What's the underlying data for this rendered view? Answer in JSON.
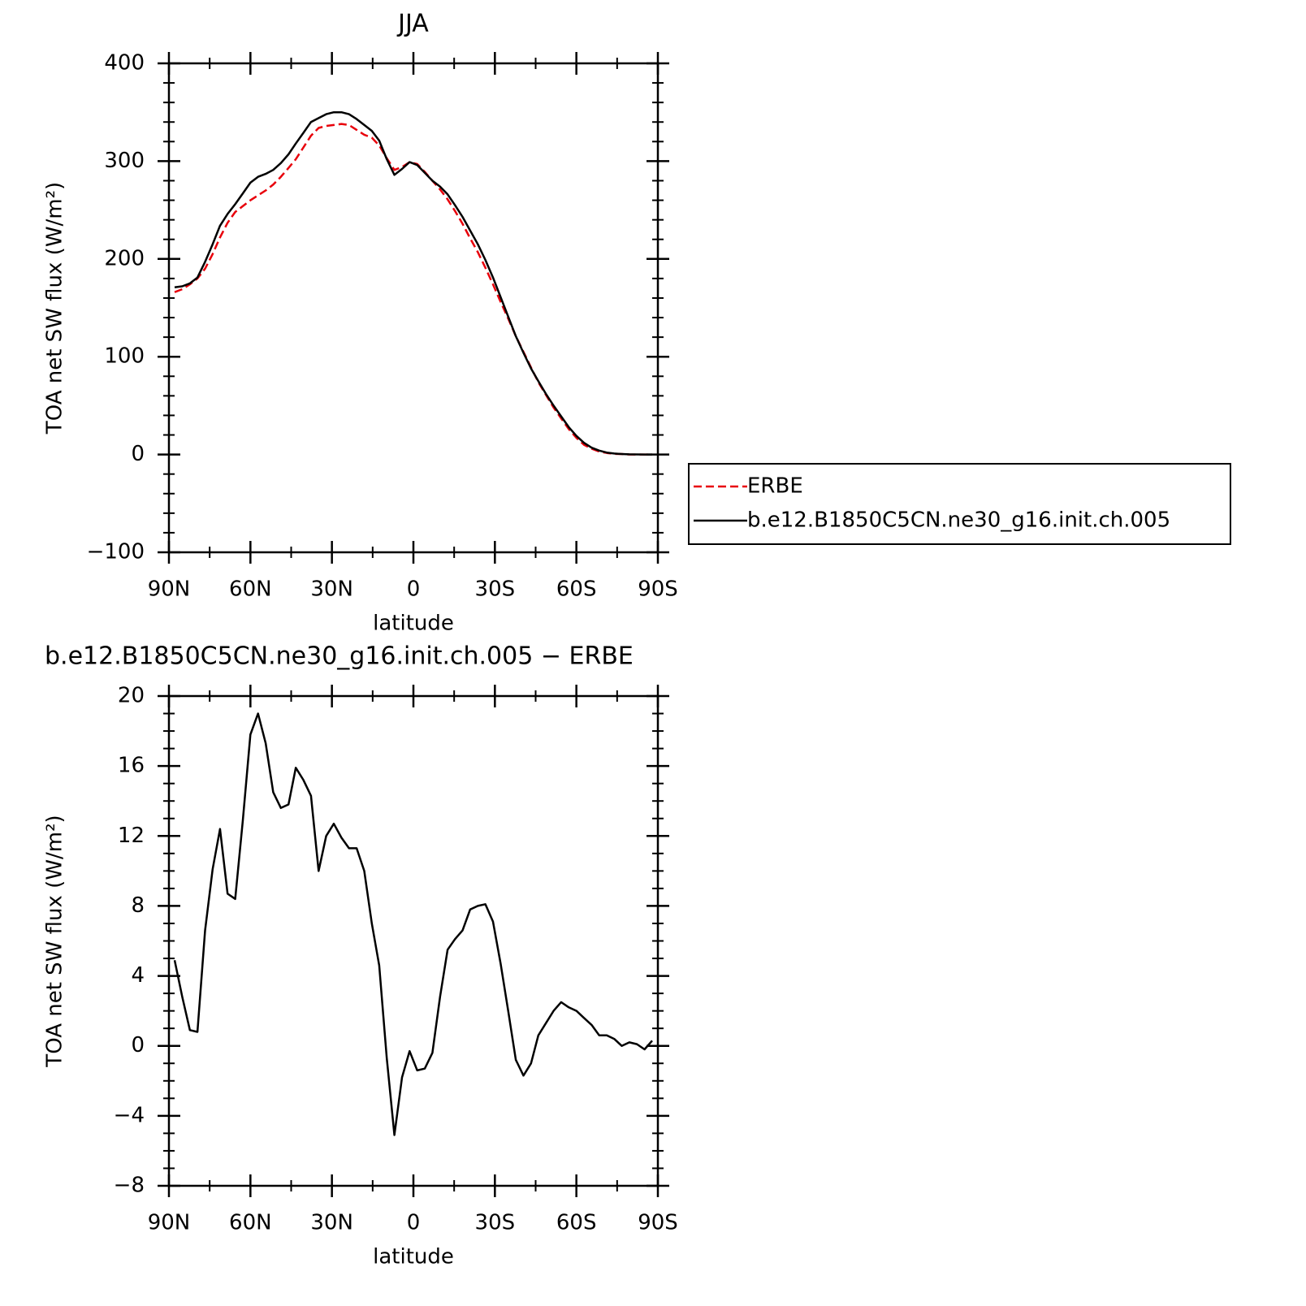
{
  "chart_data": [
    {
      "type": "line",
      "title": "JJA",
      "xlabel": "latitude",
      "ylabel": "TOA net SW flux (W/m²)",
      "x": [
        87.9,
        85.1,
        82.3,
        79.5,
        76.7,
        73.9,
        71.2,
        68.4,
        65.6,
        62.8,
        60.0,
        57.2,
        54.4,
        51.6,
        48.8,
        46.0,
        43.3,
        40.5,
        37.7,
        34.9,
        32.1,
        29.3,
        26.5,
        23.7,
        20.9,
        18.1,
        15.3,
        12.6,
        9.8,
        7.0,
        4.2,
        1.4,
        -1.4,
        -4.2,
        -7.0,
        -9.8,
        -12.6,
        -15.3,
        -18.1,
        -20.9,
        -23.7,
        -26.5,
        -29.3,
        -32.1,
        -34.9,
        -37.7,
        -40.5,
        -43.3,
        -46.0,
        -48.8,
        -51.6,
        -54.4,
        -57.2,
        -60.0,
        -62.8,
        -65.6,
        -68.4,
        -71.2,
        -73.9,
        -76.7,
        -79.5,
        -82.3,
        -85.1,
        -87.9
      ],
      "series": [
        {
          "name": "ERBE",
          "color": "#e8000b",
          "linestyle": "dashed",
          "values": [
            166,
            169,
            174,
            180,
            190,
            205,
            222,
            237,
            248,
            254,
            260,
            265,
            270,
            276,
            284,
            293,
            302,
            314,
            326,
            334,
            336,
            337,
            338,
            337,
            332,
            327,
            324,
            316,
            303,
            291,
            294,
            299,
            297,
            289,
            280,
            271,
            261,
            249,
            236,
            221,
            207,
            191,
            174,
            156,
            139,
            121,
            105,
            89,
            74,
            61,
            48,
            37,
            26,
            17,
            10,
            6,
            3,
            1.6,
            0.6,
            0.5,
            0,
            0,
            0,
            0
          ]
        },
        {
          "name": "b.e12.B1850C5CN.ne30_g16.init.ch.005",
          "color": "#000000",
          "linestyle": "solid",
          "values": [
            171,
            172,
            175,
            181,
            197,
            215,
            234,
            246,
            256,
            267,
            278,
            284,
            287,
            291,
            298,
            307,
            318,
            329,
            340,
            344,
            348,
            350,
            350,
            348,
            343,
            337,
            331,
            321,
            302,
            286,
            292,
            299,
            296,
            288,
            280,
            274,
            266,
            255,
            243,
            229,
            215,
            199,
            181,
            161,
            141,
            121,
            104,
            88,
            75,
            62,
            50,
            39,
            28,
            19,
            12,
            7,
            4,
            2,
            1,
            0.5,
            0.2,
            0.1,
            0,
            0
          ]
        }
      ],
      "xlim": [
        90,
        -90
      ],
      "xticks": [
        {
          "value": 90,
          "label": "90N"
        },
        {
          "value": 60,
          "label": "60N"
        },
        {
          "value": 30,
          "label": "30N"
        },
        0,
        {
          "value": -30,
          "label": "30S"
        },
        {
          "value": -60,
          "label": "60S"
        },
        {
          "value": -90,
          "label": "90S"
        }
      ],
      "ylim": [
        -100,
        400
      ],
      "yticks": [
        {
          "value": -100,
          "label": "−100"
        },
        0,
        100,
        200,
        300,
        400
      ],
      "legend": "right"
    },
    {
      "type": "line",
      "title": "b.e12.B1850C5CN.ne30_g16.init.ch.005 − ERBE",
      "xlabel": "latitude",
      "ylabel": "TOA net SW flux (W/m²)",
      "x": [
        87.9,
        85.1,
        82.3,
        79.5,
        76.7,
        73.9,
        71.2,
        68.4,
        65.6,
        62.8,
        60.0,
        57.2,
        54.4,
        51.6,
        48.8,
        46.0,
        43.3,
        40.5,
        37.7,
        34.9,
        32.1,
        29.3,
        26.5,
        23.7,
        20.9,
        18.1,
        15.3,
        12.6,
        9.8,
        7.0,
        4.2,
        1.4,
        -1.4,
        -4.2,
        -7.0,
        -9.8,
        -12.6,
        -15.3,
        -18.1,
        -20.9,
        -23.7,
        -26.5,
        -29.3,
        -32.1,
        -34.9,
        -37.7,
        -40.5,
        -43.3,
        -46.0,
        -48.8,
        -51.6,
        -54.4,
        -57.2,
        -60.0,
        -62.8,
        -65.6,
        -68.4,
        -71.2,
        -73.9,
        -76.7,
        -79.5,
        -82.3,
        -85.1,
        -87.9
      ],
      "color": "#000000",
      "values": [
        4.9,
        2.8,
        0.9,
        0.8,
        6.6,
        10.1,
        12.4,
        8.7,
        8.4,
        12.9,
        17.8,
        19.0,
        17.3,
        14.5,
        13.6,
        13.8,
        15.9,
        15.2,
        14.3,
        10.0,
        12.0,
        12.7,
        11.9,
        11.3,
        11.3,
        10.0,
        7.0,
        4.6,
        -0.7,
        -5.1,
        -1.8,
        -0.3,
        -1.4,
        -1.3,
        -0.4,
        2.8,
        5.5,
        6.1,
        6.6,
        7.8,
        8.0,
        8.1,
        7.1,
        4.7,
        2.0,
        -0.8,
        -1.7,
        -1.0,
        0.6,
        1.3,
        2.0,
        2.5,
        2.2,
        2.0,
        1.6,
        1.2,
        0.6,
        0.6,
        0.4,
        0.0,
        0.2,
        0.1,
        -0.2,
        0.3
      ],
      "xlim": [
        90,
        -90
      ],
      "xticks": [
        {
          "value": 90,
          "label": "90N"
        },
        {
          "value": 60,
          "label": "60N"
        },
        {
          "value": 30,
          "label": "30N"
        },
        0,
        {
          "value": -30,
          "label": "30S"
        },
        {
          "value": -60,
          "label": "60S"
        },
        {
          "value": -90,
          "label": "90S"
        }
      ],
      "ylim": [
        -8,
        20
      ],
      "yticks": [
        {
          "value": -8,
          "label": "−8"
        },
        {
          "value": -4,
          "label": "−4"
        },
        0,
        4,
        8,
        12,
        16,
        20
      ]
    }
  ]
}
